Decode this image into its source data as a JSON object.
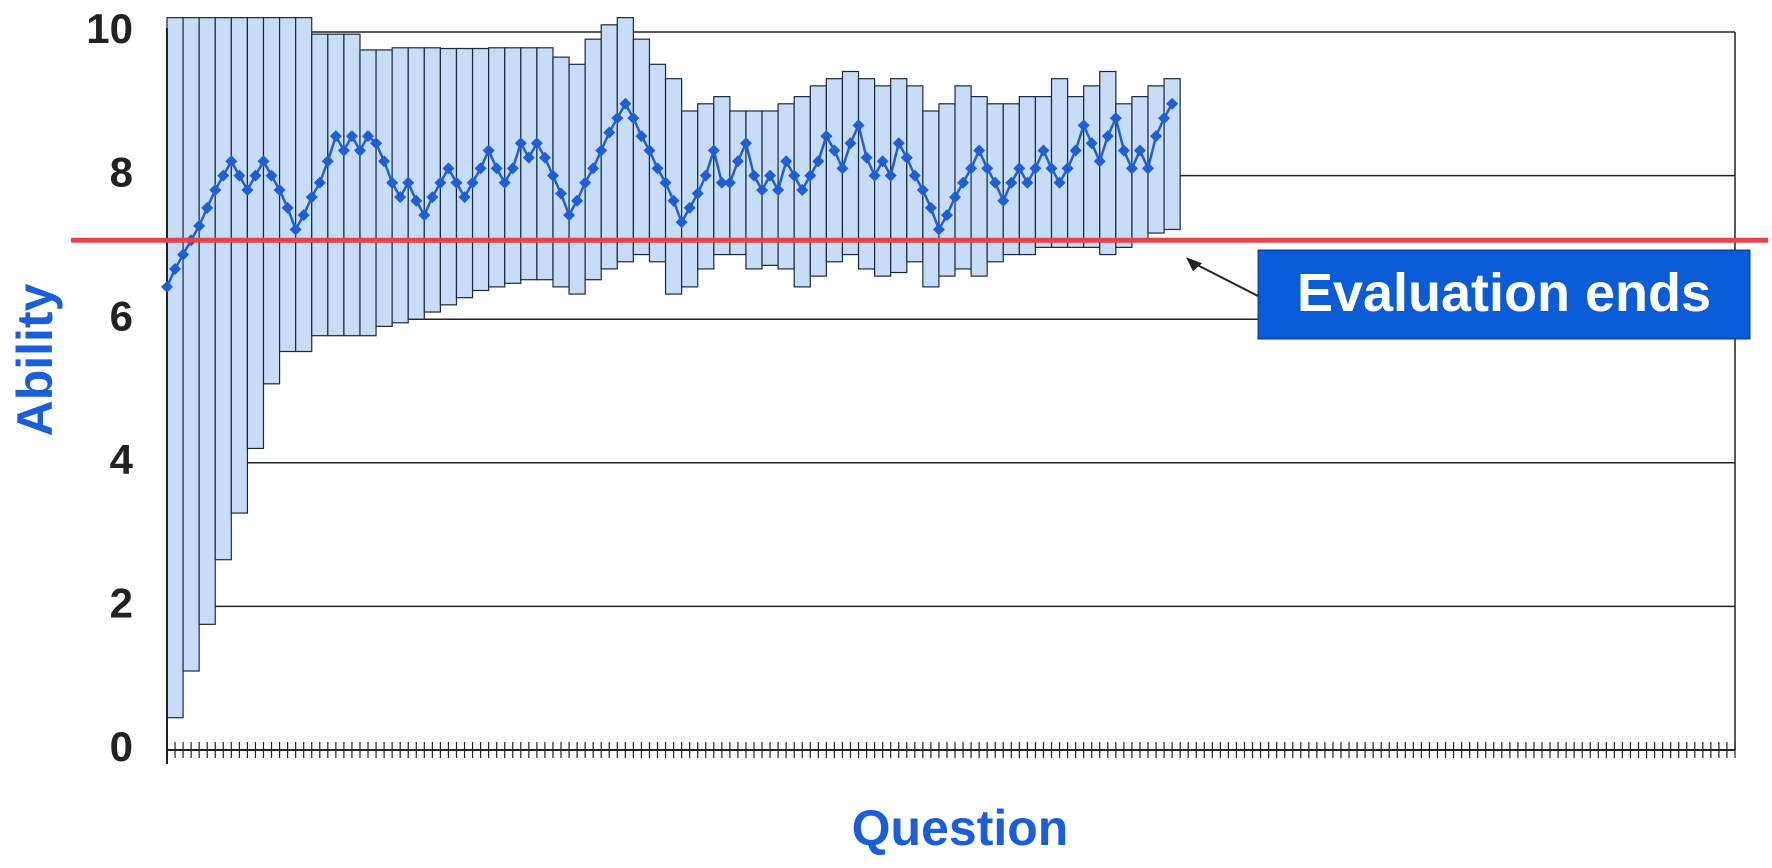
{
  "chart_data": {
    "type": "interval-line",
    "x_label": "Question",
    "y_label": "Ability",
    "xlim": [
      0,
      195
    ],
    "ylim": [
      0,
      10
    ],
    "yticks": [
      0,
      2,
      4,
      6,
      8,
      10
    ],
    "xticks": [
      0,
      1,
      2,
      3,
      4,
      5,
      6,
      7,
      8,
      9,
      10,
      11,
      12,
      13,
      14,
      15,
      16,
      17,
      18,
      19,
      20,
      21,
      22,
      23,
      24,
      25,
      26,
      27,
      28,
      29,
      30,
      31,
      32,
      33,
      34,
      35,
      36,
      37,
      38,
      39,
      40,
      41,
      42,
      43,
      44,
      45,
      46,
      47,
      48,
      49,
      50,
      51,
      52,
      53,
      54,
      55,
      56,
      57,
      58,
      59,
      60,
      61,
      62,
      63,
      64,
      65,
      66,
      67,
      68,
      69,
      70,
      71,
      72,
      73,
      74,
      75,
      76,
      77,
      78,
      79,
      80,
      81,
      82,
      83,
      84,
      85,
      86,
      87,
      88,
      89,
      90,
      91,
      92,
      93,
      94,
      95,
      96,
      97,
      98,
      99,
      100,
      101,
      102,
      103,
      104,
      105,
      106,
      107,
      108,
      109,
      110,
      111,
      112,
      113,
      114,
      115,
      116,
      117,
      118,
      119,
      120,
      121,
      122,
      123,
      124,
      125,
      126,
      127,
      128,
      129,
      130,
      131,
      132,
      133,
      134,
      135,
      136,
      137,
      138,
      139,
      140,
      141,
      142,
      143,
      144,
      145,
      146,
      147,
      148,
      149,
      150,
      151,
      152,
      153,
      154,
      155,
      156,
      157,
      158,
      159,
      160,
      161,
      162,
      163,
      164,
      165,
      166,
      167,
      168,
      169,
      170,
      171,
      172,
      173,
      174,
      175,
      176,
      177,
      178,
      179,
      180,
      181,
      182,
      183,
      184,
      185,
      186,
      187,
      188,
      189,
      190,
      191,
      192,
      193,
      194,
      195
    ],
    "grid": true,
    "intervals": {
      "color": "#c6dcf7",
      "x_start": [
        0,
        2,
        4,
        6,
        8,
        10,
        12,
        14,
        16,
        18,
        20,
        22,
        24,
        26,
        28,
        30,
        32,
        34,
        36,
        38,
        40,
        42,
        44,
        46,
        48,
        50,
        52,
        54,
        56,
        58,
        60,
        62,
        64,
        66,
        68,
        70,
        72,
        74,
        76,
        78,
        80,
        82,
        84,
        86,
        88,
        90,
        92,
        94,
        96,
        98,
        100,
        102,
        104,
        106,
        108,
        110,
        112,
        114,
        116,
        118,
        120,
        122,
        124
      ],
      "x_end": [
        2,
        4,
        6,
        8,
        10,
        12,
        14,
        16,
        18,
        20,
        22,
        24,
        26,
        28,
        30,
        32,
        34,
        36,
        38,
        40,
        42,
        44,
        46,
        48,
        50,
        52,
        54,
        56,
        58,
        60,
        62,
        64,
        66,
        68,
        70,
        72,
        74,
        76,
        78,
        80,
        82,
        84,
        86,
        88,
        90,
        92,
        94,
        96,
        98,
        100,
        102,
        104,
        106,
        108,
        110,
        112,
        114,
        116,
        118,
        120,
        122,
        124,
        126
      ],
      "upper": [
        10.2,
        10.2,
        10.2,
        10.2,
        10.2,
        10.2,
        10.2,
        10.2,
        10.2,
        9.97,
        9.97,
        9.97,
        9.75,
        9.75,
        9.78,
        9.78,
        9.78,
        9.77,
        9.77,
        9.77,
        9.78,
        9.78,
        9.78,
        9.78,
        9.65,
        9.55,
        9.9,
        10.1,
        10.2,
        9.9,
        9.55,
        9.35,
        8.9,
        9.0,
        9.1,
        8.9,
        8.9,
        8.9,
        9.0,
        9.1,
        9.25,
        9.35,
        9.45,
        9.35,
        9.25,
        9.35,
        9.25,
        8.9,
        9.0,
        9.25,
        9.1,
        9.0,
        9.0,
        9.1,
        9.1,
        9.35,
        9.1,
        9.25,
        9.45,
        9.0,
        9.1,
        9.25,
        9.35
      ],
      "lower": [
        0.45,
        1.1,
        1.75,
        2.65,
        3.3,
        4.2,
        5.1,
        5.55,
        5.55,
        5.77,
        5.77,
        5.77,
        5.77,
        5.9,
        5.95,
        6.0,
        6.1,
        6.2,
        6.3,
        6.4,
        6.45,
        6.5,
        6.55,
        6.55,
        6.45,
        6.35,
        6.55,
        6.7,
        6.8,
        6.9,
        6.8,
        6.35,
        6.45,
        6.7,
        6.9,
        6.9,
        6.7,
        6.75,
        6.7,
        6.45,
        6.6,
        6.8,
        6.9,
        6.7,
        6.6,
        6.65,
        6.8,
        6.45,
        6.6,
        6.7,
        6.6,
        6.8,
        6.9,
        6.9,
        7.0,
        7.0,
        7.0,
        7.0,
        6.9,
        7.0,
        7.1,
        7.2,
        7.25
      ]
    },
    "series": [
      {
        "color": "#1f5fd6",
        "x": [
          0,
          1,
          2,
          3,
          4,
          5,
          6,
          7,
          8,
          9,
          10,
          11,
          12,
          13,
          14,
          15,
          16,
          17,
          18,
          19,
          20,
          21,
          22,
          23,
          24,
          25,
          26,
          27,
          28,
          29,
          30,
          31,
          32,
          33,
          34,
          35,
          36,
          37,
          38,
          39,
          40,
          41,
          42,
          43,
          44,
          45,
          46,
          47,
          48,
          49,
          50,
          51,
          52,
          53,
          54,
          55,
          56,
          57,
          58,
          59,
          60,
          61,
          62,
          63,
          64,
          65,
          66,
          67,
          68,
          69,
          70,
          71,
          72,
          73,
          74,
          75,
          76,
          77,
          78,
          79,
          80,
          81,
          82,
          83,
          84,
          85,
          86,
          87,
          88,
          89,
          90,
          91,
          92,
          93,
          94,
          95,
          96,
          97,
          98,
          99,
          100,
          101,
          102,
          103,
          104,
          105,
          106,
          107,
          108,
          109,
          110,
          111,
          112,
          113,
          114,
          115,
          116,
          117,
          118,
          119,
          120,
          121,
          122,
          123,
          124,
          125
        ],
        "values": [
          6.45,
          6.7,
          6.9,
          7.1,
          7.3,
          7.55,
          7.8,
          8.0,
          8.2,
          8.0,
          7.8,
          8.0,
          8.2,
          8.0,
          7.8,
          7.55,
          7.25,
          7.45,
          7.7,
          7.9,
          8.2,
          8.55,
          8.35,
          8.55,
          8.35,
          8.55,
          8.45,
          8.2,
          7.9,
          7.7,
          7.9,
          7.65,
          7.45,
          7.7,
          7.9,
          8.1,
          7.9,
          7.7,
          7.9,
          8.1,
          8.35,
          8.1,
          7.9,
          8.1,
          8.45,
          8.25,
          8.45,
          8.25,
          8.0,
          7.75,
          7.45,
          7.65,
          7.9,
          8.1,
          8.35,
          8.6,
          8.8,
          9.0,
          8.8,
          8.55,
          8.35,
          8.1,
          7.9,
          7.65,
          7.35,
          7.55,
          7.75,
          8.0,
          8.35,
          7.9,
          7.9,
          8.2,
          8.45,
          8.0,
          7.8,
          8.0,
          7.8,
          8.2,
          8.0,
          7.8,
          8.0,
          8.2,
          8.55,
          8.35,
          8.1,
          8.45,
          8.7,
          8.25,
          8.0,
          8.2,
          8.0,
          8.45,
          8.25,
          8.0,
          7.8,
          7.55,
          7.25,
          7.45,
          7.7,
          7.9,
          8.1,
          8.35,
          8.1,
          7.9,
          7.65,
          7.9,
          8.1,
          7.9,
          8.1,
          8.35,
          8.1,
          7.9,
          8.1,
          8.35,
          8.7,
          8.45,
          8.2,
          8.55,
          8.8,
          8.35,
          8.1,
          8.35,
          8.1,
          8.55,
          8.8,
          9.0
        ]
      }
    ],
    "threshold": {
      "value": 7.1,
      "color": "#e8424a"
    },
    "annotation": {
      "text": "Evaluation ends",
      "color": "#0a5bd6"
    }
  }
}
